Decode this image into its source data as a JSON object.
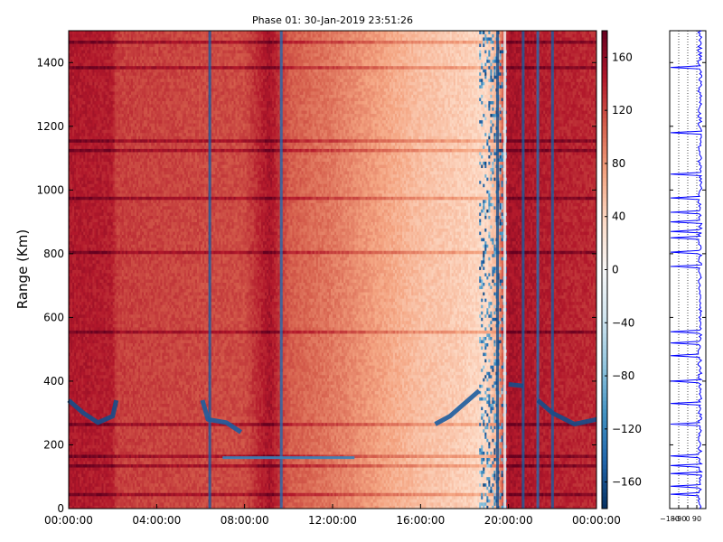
{
  "chart_data": {
    "type": "heatmap",
    "title": "Phase 01: 30-Jan-2019 23:51:26",
    "ylabel": "Range (Km)",
    "xlabel": "",
    "xlim": [
      "00:00:00",
      "24:00:00"
    ],
    "ylim": [
      0,
      1500
    ],
    "x_ticks": [
      "00:00:00",
      "04:00:00",
      "08:00:00",
      "12:00:00",
      "16:00:00",
      "20:00:00",
      "00:00:00"
    ],
    "y_ticks": [
      "0",
      "200",
      "400",
      "600",
      "800",
      "1000",
      "1200",
      "1400"
    ],
    "colorbar": {
      "range": [
        -180,
        180
      ],
      "ticks": [
        "160",
        "120",
        "80",
        "40",
        "0",
        "−40",
        "−80",
        "−120",
        "−160"
      ],
      "colormap": "RdBu_r",
      "colors": [
        "#053061",
        "#2166ac",
        "#4393c3",
        "#92c5de",
        "#d1e5f0",
        "#f7f7f7",
        "#fddbc7",
        "#f4a582",
        "#d6604d",
        "#b2182b",
        "#67001f"
      ]
    },
    "side_panel": {
      "x_ticks": [
        "−180",
        "−90",
        "0",
        "90"
      ],
      "line_color": "#0000ff"
    },
    "base_phase_profile": [
      {
        "t": "00:00",
        "phase": 145
      },
      {
        "t": "02:00",
        "phase": 142
      },
      {
        "t": "02:10",
        "phase": 125
      },
      {
        "t": "06:00",
        "phase": 120
      },
      {
        "t": "08:00",
        "phase": 118
      },
      {
        "t": "09:10",
        "phase": 150
      },
      {
        "t": "10:00",
        "phase": 110
      },
      {
        "t": "12:00",
        "phase": 95
      },
      {
        "t": "14:00",
        "phase": 75
      },
      {
        "t": "16:00",
        "phase": 55
      },
      {
        "t": "18:00",
        "phase": 45
      },
      {
        "t": "19:00",
        "phase": 35
      },
      {
        "t": "19:30",
        "phase": 65
      },
      {
        "t": "20:00",
        "phase": 150
      },
      {
        "t": "22:00",
        "phase": 140
      },
      {
        "t": "24:00",
        "phase": 135
      }
    ],
    "strong_range_bands_km": [
      20,
      45,
      70,
      110,
      135,
      165,
      200,
      265,
      330,
      400,
      450,
      480,
      520,
      555,
      640,
      690,
      760,
      805,
      850,
      870,
      900,
      930,
      975,
      1050,
      1090,
      1125,
      1155,
      1180,
      1210,
      1290,
      1350,
      1385,
      1465
    ],
    "vertical_streaks": [
      {
        "t": "06:25",
        "phase": -150
      },
      {
        "t": "09:40",
        "phase": -140
      },
      {
        "t": "19:30",
        "phase": -160
      },
      {
        "t": "19:50",
        "phase": 0
      },
      {
        "t": "20:40",
        "phase": -150
      },
      {
        "t": "21:20",
        "phase": -140
      },
      {
        "t": "22:00",
        "phase": -150
      }
    ],
    "features": [
      {
        "label": "low-range arc",
        "points": [
          {
            "t": "00:00",
            "km": 340
          },
          {
            "t": "00:40",
            "km": 300
          },
          {
            "t": "01:20",
            "km": 270
          },
          {
            "t": "02:00",
            "km": 290
          },
          {
            "t": "02:10",
            "km": 340
          }
        ],
        "phase": -160
      },
      {
        "label": "morning trace",
        "points": [
          {
            "t": "06:05",
            "km": 340
          },
          {
            "t": "06:20",
            "km": 280
          },
          {
            "t": "07:10",
            "km": 270
          },
          {
            "t": "07:50",
            "km": 240
          }
        ],
        "phase": -150
      },
      {
        "label": "horizontal echo",
        "points": [
          {
            "t": "07:00",
            "km": 160
          },
          {
            "t": "09:00",
            "km": 160
          },
          {
            "t": "11:00",
            "km": 160
          },
          {
            "t": "13:00",
            "km": 160
          }
        ],
        "phase": -120
      },
      {
        "label": "evening trace",
        "points": [
          {
            "t": "16:40",
            "km": 265
          },
          {
            "t": "17:20",
            "km": 290
          },
          {
            "t": "18:00",
            "km": 330
          },
          {
            "t": "18:40",
            "km": 370
          }
        ],
        "phase": -150
      },
      {
        "label": "evening echo",
        "points": [
          {
            "t": "20:00",
            "km": 390
          },
          {
            "t": "20:40",
            "km": 385
          }
        ],
        "phase": -160
      },
      {
        "label": "late arc",
        "points": [
          {
            "t": "21:20",
            "km": 340
          },
          {
            "t": "22:00",
            "km": 300
          },
          {
            "t": "23:00",
            "km": 265
          },
          {
            "t": "24:00",
            "km": 280
          }
        ],
        "phase": -160
      }
    ]
  }
}
